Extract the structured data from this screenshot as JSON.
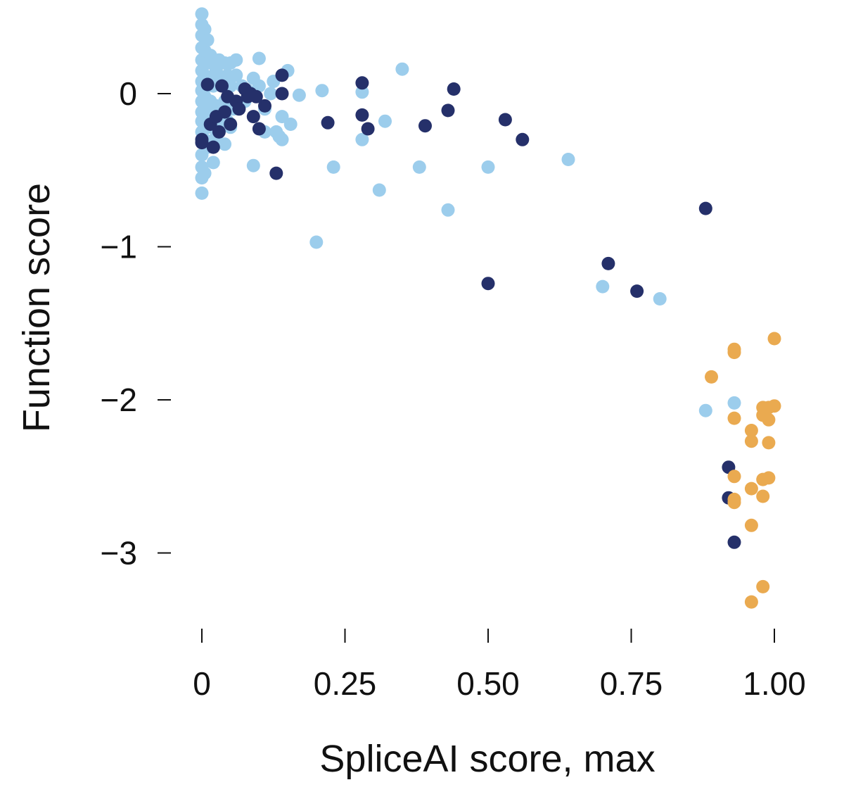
{
  "chart_data": {
    "type": "scatter",
    "title": "",
    "xlabel": "SpliceAI score, max",
    "ylabel": "Function score",
    "xlim": [
      0,
      1.0
    ],
    "ylim": [
      -3.5,
      0.5
    ],
    "grid": false,
    "x_ticks": [
      {
        "value": 0,
        "label": "0"
      },
      {
        "value": 0.25,
        "label": "0.25"
      },
      {
        "value": 0.5,
        "label": "0.50"
      },
      {
        "value": 0.75,
        "label": "0.75"
      },
      {
        "value": 1.0,
        "label": "1.00"
      }
    ],
    "y_ticks": [
      {
        "value": 0,
        "label": "0"
      },
      {
        "value": -1,
        "label": "−1"
      },
      {
        "value": -2,
        "label": "−2"
      },
      {
        "value": -3,
        "label": "−3"
      }
    ],
    "series": [
      {
        "name": "light-blue",
        "color": "#9ccdec",
        "points": [
          [
            0,
            0.52
          ],
          [
            0,
            0.45
          ],
          [
            0,
            0.38
          ],
          [
            0,
            0.3
          ],
          [
            0,
            0.22
          ],
          [
            0,
            0.15
          ],
          [
            0,
            0.08
          ],
          [
            0,
            0.02
          ],
          [
            0,
            -0.05
          ],
          [
            0,
            -0.12
          ],
          [
            0,
            -0.18
          ],
          [
            0,
            -0.25
          ],
          [
            0,
            -0.32
          ],
          [
            0,
            -0.4
          ],
          [
            0,
            -0.48
          ],
          [
            0,
            -0.55
          ],
          [
            0,
            -0.65
          ],
          [
            0.005,
            0.42
          ],
          [
            0.005,
            0.28
          ],
          [
            0.005,
            0.12
          ],
          [
            0.005,
            -0.02
          ],
          [
            0.005,
            -0.15
          ],
          [
            0.005,
            -0.3
          ],
          [
            0.005,
            -0.52
          ],
          [
            0.01,
            0.35
          ],
          [
            0.01,
            0.2
          ],
          [
            0.01,
            0.05
          ],
          [
            0.01,
            -0.1
          ],
          [
            0.01,
            -0.22
          ],
          [
            0.01,
            -0.35
          ],
          [
            0.015,
            0.25
          ],
          [
            0.015,
            0.1
          ],
          [
            0.015,
            -0.05
          ],
          [
            0.015,
            -0.2
          ],
          [
            0.02,
            0.2
          ],
          [
            0.02,
            0.05
          ],
          [
            0.02,
            -0.12
          ],
          [
            0.02,
            -0.45
          ],
          [
            0.025,
            0.15
          ],
          [
            0.025,
            -0.08
          ],
          [
            0.025,
            -0.28
          ],
          [
            0.03,
            0.22
          ],
          [
            0.03,
            0.08
          ],
          [
            0.03,
            -0.15
          ],
          [
            0.035,
            0.1
          ],
          [
            0.035,
            -0.2
          ],
          [
            0.04,
            0.2
          ],
          [
            0.04,
            -0.05
          ],
          [
            0.04,
            -0.33
          ],
          [
            0.045,
            0.12
          ],
          [
            0.045,
            -0.18
          ],
          [
            0.05,
            0.2
          ],
          [
            0.05,
            0.05
          ],
          [
            0.05,
            -0.22
          ],
          [
            0.055,
            -0.1
          ],
          [
            0.06,
            0.22
          ],
          [
            0.06,
            0.12
          ],
          [
            0.07,
            0.05
          ],
          [
            0.075,
            -0.05
          ],
          [
            0.08,
            0.02
          ],
          [
            0.09,
            0.1
          ],
          [
            0.09,
            -0.47
          ],
          [
            0.1,
            0.05
          ],
          [
            0.1,
            0.23
          ],
          [
            0.11,
            -0.25
          ],
          [
            0.11,
            -0.1
          ],
          [
            0.12,
            0.0
          ],
          [
            0.125,
            0.08
          ],
          [
            0.13,
            -0.25
          ],
          [
            0.135,
            -0.28
          ],
          [
            0.14,
            -0.15
          ],
          [
            0.14,
            -0.3
          ],
          [
            0.15,
            0.15
          ],
          [
            0.155,
            -0.2
          ],
          [
            0.17,
            -0.01
          ],
          [
            0.2,
            -0.97
          ],
          [
            0.21,
            0.02
          ],
          [
            0.23,
            -0.48
          ],
          [
            0.28,
            0.01
          ],
          [
            0.28,
            -0.3
          ],
          [
            0.31,
            -0.63
          ],
          [
            0.32,
            -0.18
          ],
          [
            0.35,
            0.16
          ],
          [
            0.38,
            -0.48
          ],
          [
            0.43,
            -0.76
          ],
          [
            0.5,
            -0.48
          ],
          [
            0.64,
            -0.43
          ],
          [
            0.7,
            -1.26
          ],
          [
            0.8,
            -1.34
          ],
          [
            0.88,
            -2.07
          ],
          [
            0.93,
            -2.02
          ]
        ]
      },
      {
        "name": "dark-navy",
        "color": "#25306a",
        "points": [
          [
            0,
            -0.3
          ],
          [
            0,
            -0.32
          ],
          [
            0.01,
            0.06
          ],
          [
            0.015,
            -0.2
          ],
          [
            0.02,
            -0.35
          ],
          [
            0.025,
            -0.15
          ],
          [
            0.03,
            -0.25
          ],
          [
            0.035,
            0.05
          ],
          [
            0.04,
            -0.12
          ],
          [
            0.045,
            -0.02
          ],
          [
            0.05,
            -0.2
          ],
          [
            0.06,
            -0.05
          ],
          [
            0.065,
            -0.1
          ],
          [
            0.075,
            0.03
          ],
          [
            0.08,
            -0.02
          ],
          [
            0.085,
            0.0
          ],
          [
            0.09,
            -0.15
          ],
          [
            0.095,
            -0.02
          ],
          [
            0.1,
            -0.23
          ],
          [
            0.11,
            -0.08
          ],
          [
            0.13,
            -0.52
          ],
          [
            0.14,
            0.12
          ],
          [
            0.14,
            0.0
          ],
          [
            0.22,
            -0.19
          ],
          [
            0.28,
            0.07
          ],
          [
            0.28,
            -0.14
          ],
          [
            0.29,
            -0.23
          ],
          [
            0.39,
            -0.21
          ],
          [
            0.43,
            -0.11
          ],
          [
            0.44,
            0.03
          ],
          [
            0.5,
            -1.24
          ],
          [
            0.53,
            -0.17
          ],
          [
            0.56,
            -0.3
          ],
          [
            0.71,
            -1.11
          ],
          [
            0.76,
            -1.29
          ],
          [
            0.88,
            -0.75
          ],
          [
            0.92,
            -2.44
          ],
          [
            0.92,
            -2.64
          ],
          [
            0.93,
            -2.93
          ]
        ]
      },
      {
        "name": "orange",
        "color": "#eaaa50",
        "points": [
          [
            0.89,
            -1.85
          ],
          [
            0.93,
            -1.67
          ],
          [
            0.93,
            -1.69
          ],
          [
            0.93,
            -2.12
          ],
          [
            0.93,
            -2.5
          ],
          [
            0.93,
            -2.65
          ],
          [
            0.93,
            -2.67
          ],
          [
            0.96,
            -2.2
          ],
          [
            0.96,
            -2.27
          ],
          [
            0.96,
            -2.58
          ],
          [
            0.96,
            -2.82
          ],
          [
            0.96,
            -3.32
          ],
          [
            0.98,
            -2.05
          ],
          [
            0.98,
            -2.1
          ],
          [
            0.98,
            -2.52
          ],
          [
            0.98,
            -2.63
          ],
          [
            0.98,
            -3.22
          ],
          [
            0.99,
            -2.05
          ],
          [
            0.99,
            -2.13
          ],
          [
            0.99,
            -2.28
          ],
          [
            0.99,
            -2.51
          ],
          [
            1.0,
            -1.6
          ],
          [
            1.0,
            -2.04
          ]
        ]
      }
    ]
  }
}
